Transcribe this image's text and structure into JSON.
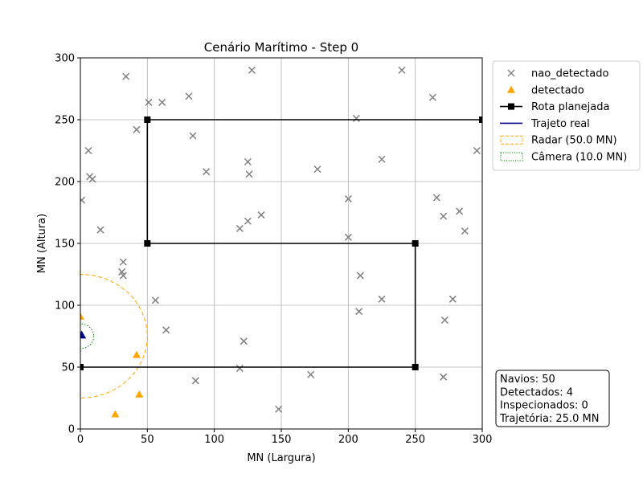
{
  "chart_data": {
    "type": "scatter",
    "title": "Cenário Marítimo - Step 0",
    "xlabel": "MN (Largura)",
    "ylabel": "MN (Altura)",
    "xlim": [
      0,
      300
    ],
    "ylim": [
      0,
      300
    ],
    "x_ticks": [
      0,
      50,
      100,
      150,
      200,
      250,
      300
    ],
    "y_ticks": [
      0,
      50,
      100,
      150,
      200,
      250,
      300
    ],
    "grid": true,
    "legend_position": "outside-right-top",
    "series": [
      {
        "name": "nao_detectado",
        "marker": "x",
        "color": "#808080",
        "points": [
          [
            34,
            285
          ],
          [
            128,
            290
          ],
          [
            240,
            290
          ],
          [
            51,
            264
          ],
          [
            61,
            264
          ],
          [
            81,
            269
          ],
          [
            263,
            268
          ],
          [
            42,
            242
          ],
          [
            206,
            251
          ],
          [
            6,
            225
          ],
          [
            84,
            237
          ],
          [
            296,
            225
          ],
          [
            125,
            216
          ],
          [
            225,
            218
          ],
          [
            94,
            208
          ],
          [
            126,
            206
          ],
          [
            177,
            210
          ],
          [
            7,
            204
          ],
          [
            9,
            202
          ],
          [
            1,
            185
          ],
          [
            200,
            186
          ],
          [
            266,
            187
          ],
          [
            135,
            173
          ],
          [
            271,
            172
          ],
          [
            283,
            176
          ],
          [
            125,
            168
          ],
          [
            119,
            162
          ],
          [
            15,
            161
          ],
          [
            287,
            160
          ],
          [
            200,
            155
          ],
          [
            32,
            135
          ],
          [
            31,
            127
          ],
          [
            32,
            124
          ],
          [
            209,
            124
          ],
          [
            56,
            104
          ],
          [
            225,
            105
          ],
          [
            278,
            105
          ],
          [
            208,
            95
          ],
          [
            272,
            88
          ],
          [
            64,
            80
          ],
          [
            122,
            71
          ],
          [
            119,
            49
          ],
          [
            172,
            44
          ],
          [
            271,
            42
          ],
          [
            86,
            39
          ],
          [
            148,
            16
          ]
        ]
      },
      {
        "name": "detectado",
        "marker": "triangle",
        "color": "#ffa500",
        "points": [
          [
            0,
            91
          ],
          [
            42,
            60
          ],
          [
            44,
            28
          ],
          [
            26,
            12
          ]
        ]
      },
      {
        "name": "Rota planejada",
        "marker": "square-line",
        "color": "#000000",
        "points": [
          [
            0,
            50
          ],
          [
            250,
            50
          ],
          [
            250,
            150
          ],
          [
            50,
            150
          ],
          [
            50,
            250
          ],
          [
            300,
            250
          ]
        ]
      },
      {
        "name": "Trajeto real",
        "marker": "line",
        "color": "#00008b",
        "points": [
          [
            0,
            75
          ]
        ]
      }
    ],
    "agent": {
      "x": 1,
      "y": 76,
      "color": "#00008b"
    },
    "circles": [
      {
        "name": "Radar (50.0 MN)",
        "center": [
          0,
          75
        ],
        "radius": 50,
        "color": "#ffa500",
        "style": "dashed"
      },
      {
        "name": "Câmera (10.0 MN)",
        "center": [
          0,
          75
        ],
        "radius": 10,
        "color": "#008000",
        "style": "dotted"
      }
    ],
    "legend_entries": [
      "nao_detectado",
      "detectado",
      "Rota planejada",
      "Trajeto real",
      "Radar (50.0 MN)",
      "Câmera (10.0 MN)"
    ],
    "info_box": [
      "Navios: 50",
      "Detectados: 4",
      "Inspecionados: 0",
      "Trajetória: 25.0 MN"
    ]
  }
}
